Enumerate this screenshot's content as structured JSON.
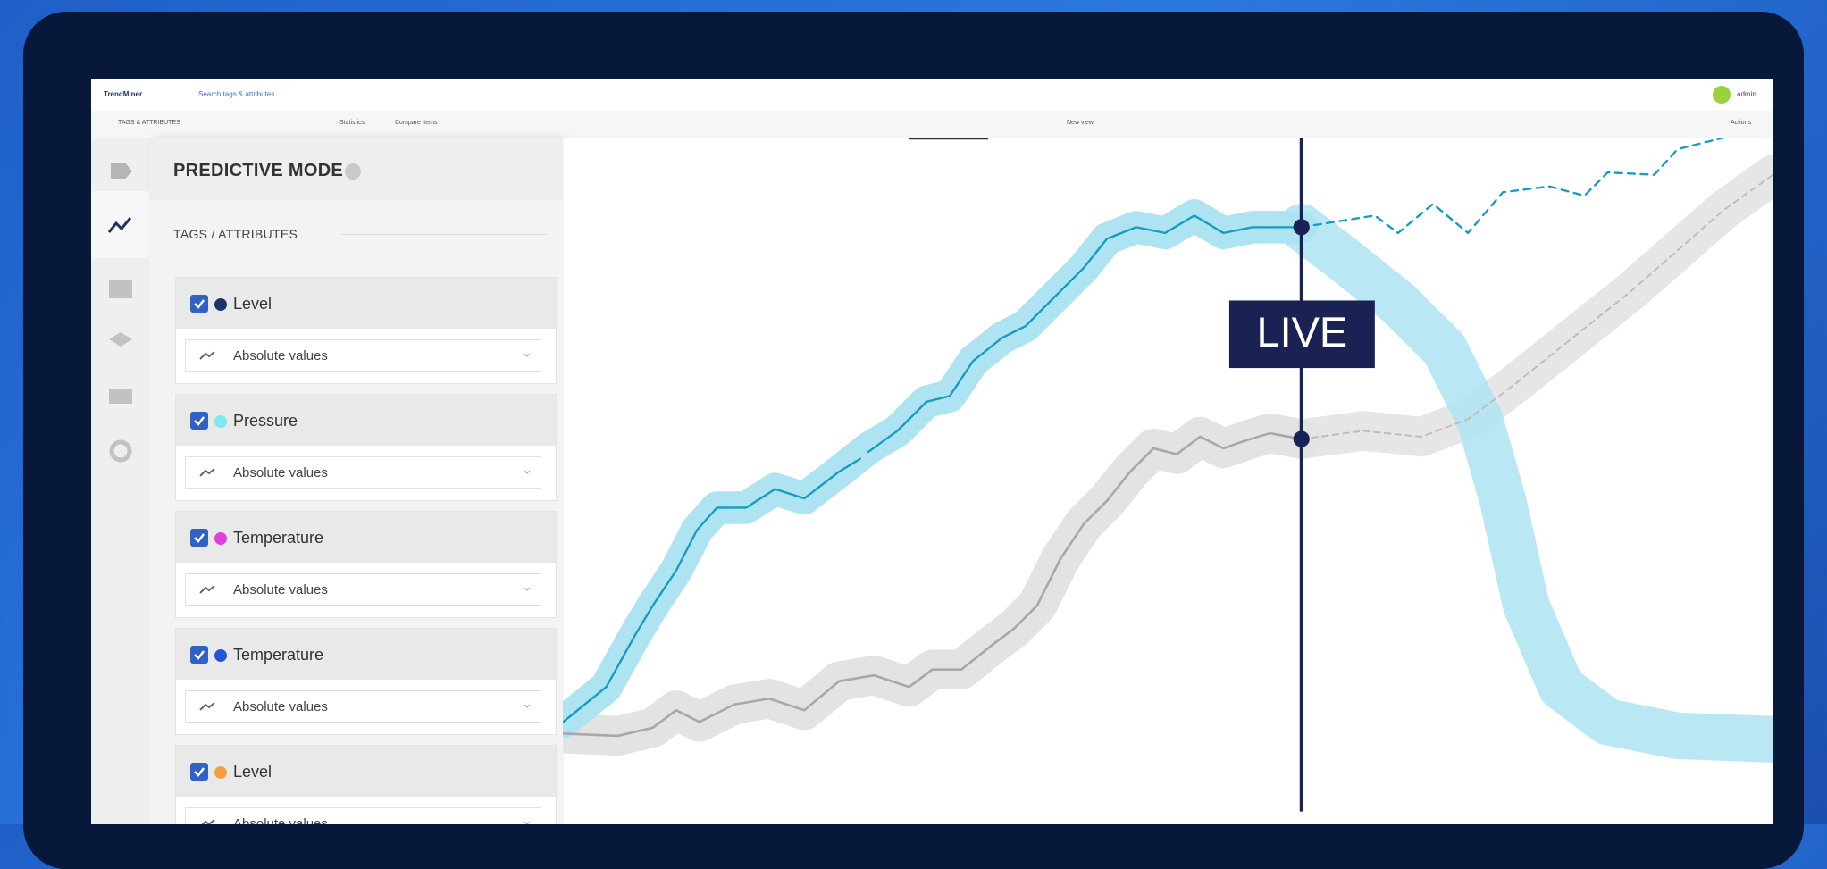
{
  "topbar": {
    "app": "TrendMiner",
    "search": "Search tags & attributes",
    "user": "admin"
  },
  "toolbar": {
    "section": "TAGS & ATTRIBUTES",
    "statistics": "Statistics",
    "compare": "Compare items",
    "view": "New view",
    "actions": "Actions"
  },
  "panel": {
    "title": "PREDICTIVE MODE",
    "subtitle": "TAGS / ATTRIBUTES",
    "tags": [
      {
        "name": "Level",
        "color": "#1d3466",
        "mode": "Absolute values"
      },
      {
        "name": "Pressure",
        "color": "#7fe6f2",
        "mode": "Absolute values"
      },
      {
        "name": "Temperature",
        "color": "#e23fe0",
        "mode": "Absolute values"
      },
      {
        "name": "Temperature",
        "color": "#2356d8",
        "mode": "Absolute values"
      },
      {
        "name": "Level",
        "color": "#f4a041",
        "mode": "Absolute values"
      }
    ]
  },
  "chart": {
    "live_label": "LIVE"
  }
}
